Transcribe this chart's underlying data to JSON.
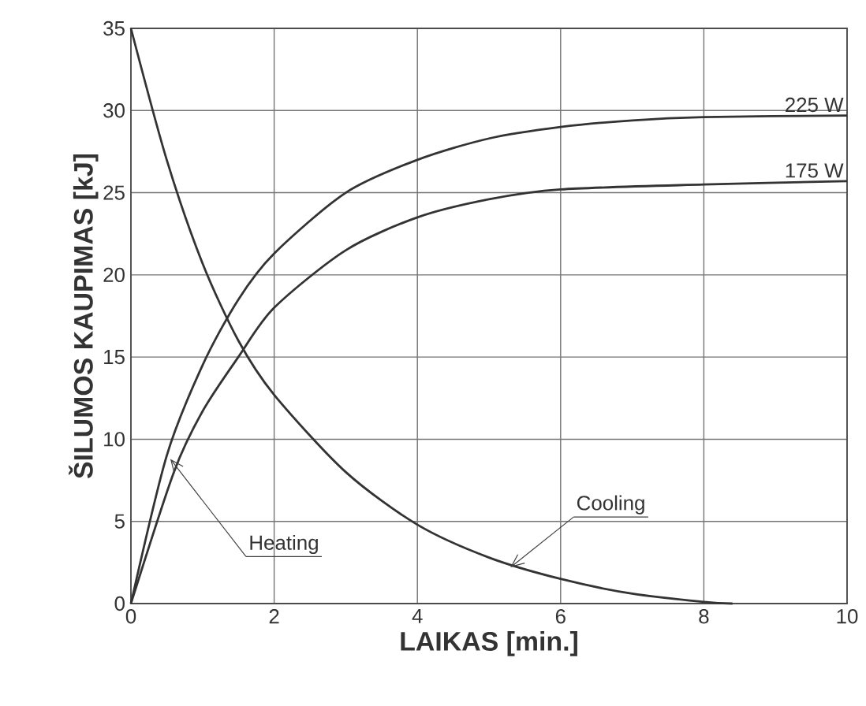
{
  "chart_data": {
    "type": "line",
    "xlabel": "LAIKAS [min.]",
    "ylabel": "ŠILUMOS KAUPIMAS [kJ]",
    "xlim": [
      0,
      10
    ],
    "ylim": [
      0,
      35
    ],
    "xticks": [
      0,
      2,
      4,
      6,
      8,
      10
    ],
    "yticks": [
      0,
      5,
      10,
      15,
      20,
      25,
      30,
      35
    ],
    "grid": true,
    "series": [
      {
        "name": "225 W",
        "color": "#333333",
        "x": [
          0,
          0.5,
          1,
          1.5,
          2,
          3,
          4,
          5,
          6,
          7,
          8,
          10
        ],
        "values": [
          0,
          9,
          14.5,
          18.5,
          21.3,
          25,
          27,
          28.3,
          29,
          29.4,
          29.6,
          29.7
        ]
      },
      {
        "name": "175 W",
        "color": "#333333",
        "x": [
          0,
          0.6,
          1,
          1.5,
          2,
          3,
          4,
          5,
          6,
          8,
          10
        ],
        "values": [
          0,
          8,
          11.7,
          15,
          18,
          21.5,
          23.5,
          24.6,
          25.2,
          25.5,
          25.7
        ]
      },
      {
        "color": "#333333",
        "x": [
          0,
          0.5,
          1,
          1.5,
          2,
          3,
          4,
          5,
          6,
          7,
          8,
          8.4
        ],
        "values": [
          35,
          27,
          20.7,
          16,
          12.7,
          8,
          4.8,
          2.8,
          1.5,
          0.6,
          0.1,
          0
        ]
      }
    ],
    "annotations": [
      {
        "text": "Heating",
        "x": 0.55,
        "y": 8.8
      },
      {
        "text": "Cooling",
        "x": 5.3,
        "y": 2.2
      }
    ]
  }
}
